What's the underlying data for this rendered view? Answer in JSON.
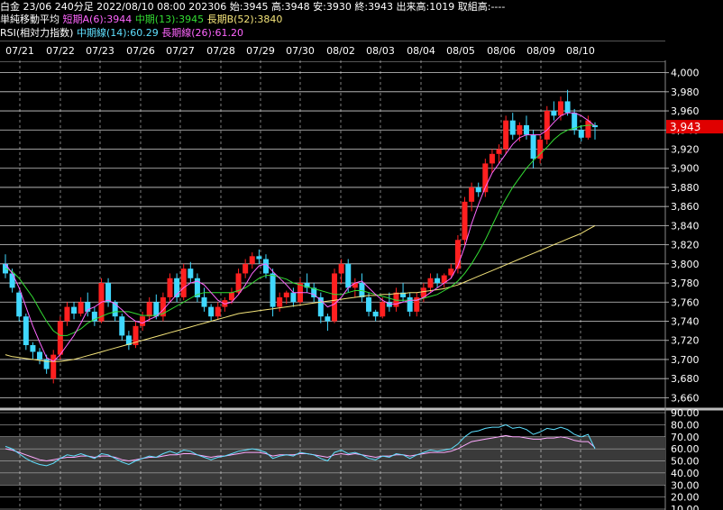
{
  "header": {
    "line1": "白金 23/06 240分足 2022/08/10 08:00 202306 始:3945 高:3948 安:3930 終:3943 出来高:1019 取組高:----",
    "ma_title": "単純移動平均",
    "ma_short": "短期A(6):3944",
    "ma_mid": "中期(13):3945",
    "ma_long": "長期B(52):3840",
    "rsi_title": "RSI(相対力指数)",
    "rsi_mid": "中期線(14):60.29",
    "rsi_long": "長期線(26):61.20"
  },
  "dates": [
    "07/21",
    "07/22",
    "07/23",
    "07/26",
    "07/27",
    "07/28",
    "07/29",
    "07/30",
    "08/02",
    "08/03",
    "08/04",
    "08/05",
    "08/06",
    "08/09",
    "08/10"
  ],
  "price_axis": [
    "4,000",
    "3,980",
    "3,960",
    "3,940",
    "3,920",
    "3,900",
    "3,880",
    "3,860",
    "3,840",
    "3,820",
    "3,800",
    "3,780",
    "3,760",
    "3,740",
    "3,720",
    "3,700",
    "3,680",
    "3,660"
  ],
  "last_price": "3,943",
  "rsi_axis": [
    "90.00",
    "80.00",
    "70.00",
    "60.00",
    "50.00",
    "40.00",
    "30.00",
    "20.00",
    "10.00"
  ],
  "colors": {
    "up": "#ff2020",
    "down": "#40d8ff",
    "ma_short": "#ff66ff",
    "ma_mid": "#33dd33",
    "ma_long": "#f4e47a",
    "rsi_mid": "#5fe0ff",
    "rsi_long": "#ffaaff"
  },
  "chart_data": {
    "type": "candlestick",
    "title": "白金 23/06 240分足",
    "price_ylim": [
      3650,
      4010
    ],
    "rsi_ylim": [
      10,
      90
    ],
    "candles": [
      [
        3800,
        3810,
        3785,
        3790
      ],
      [
        3790,
        3795,
        3770,
        3775
      ],
      [
        3770,
        3772,
        3740,
        3745
      ],
      [
        3745,
        3748,
        3710,
        3715
      ],
      [
        3715,
        3718,
        3700,
        3708
      ],
      [
        3708,
        3712,
        3695,
        3700
      ],
      [
        3700,
        3705,
        3685,
        3690
      ],
      [
        3680,
        3710,
        3675,
        3705
      ],
      [
        3705,
        3745,
        3700,
        3740
      ],
      [
        3740,
        3760,
        3735,
        3755
      ],
      [
        3755,
        3760,
        3742,
        3748
      ],
      [
        3748,
        3765,
        3745,
        3760
      ],
      [
        3760,
        3770,
        3745,
        3750
      ],
      [
        3750,
        3755,
        3735,
        3740
      ],
      [
        3740,
        3785,
        3738,
        3780
      ],
      [
        3780,
        3785,
        3755,
        3760
      ],
      [
        3760,
        3762,
        3740,
        3745
      ],
      [
        3745,
        3748,
        3720,
        3725
      ],
      [
        3725,
        3730,
        3710,
        3715
      ],
      [
        3715,
        3740,
        3712,
        3735
      ],
      [
        3735,
        3750,
        3730,
        3745
      ],
      [
        3745,
        3765,
        3740,
        3760
      ],
      [
        3760,
        3768,
        3742,
        3745
      ],
      [
        3745,
        3770,
        3740,
        3765
      ],
      [
        3765,
        3790,
        3760,
        3785
      ],
      [
        3785,
        3790,
        3760,
        3765
      ],
      [
        3765,
        3800,
        3762,
        3795
      ],
      [
        3795,
        3802,
        3780,
        3785
      ],
      [
        3785,
        3790,
        3760,
        3765
      ],
      [
        3765,
        3775,
        3750,
        3755
      ],
      [
        3755,
        3758,
        3740,
        3745
      ],
      [
        3745,
        3760,
        3742,
        3755
      ],
      [
        3755,
        3765,
        3750,
        3762
      ],
      [
        3762,
        3775,
        3758,
        3770
      ],
      [
        3770,
        3795,
        3768,
        3790
      ],
      [
        3790,
        3805,
        3785,
        3800
      ],
      [
        3800,
        3812,
        3795,
        3808
      ],
      [
        3808,
        3815,
        3800,
        3805
      ],
      [
        3805,
        3810,
        3785,
        3790
      ],
      [
        3790,
        3795,
        3745,
        3755
      ],
      [
        3755,
        3770,
        3750,
        3765
      ],
      [
        3765,
        3772,
        3758,
        3770
      ],
      [
        3770,
        3775,
        3755,
        3760
      ],
      [
        3760,
        3785,
        3758,
        3780
      ],
      [
        3780,
        3790,
        3770,
        3775
      ],
      [
        3775,
        3780,
        3760,
        3765
      ],
      [
        3765,
        3770,
        3738,
        3745
      ],
      [
        3745,
        3748,
        3730,
        3740
      ],
      [
        3740,
        3795,
        3738,
        3790
      ],
      [
        3790,
        3805,
        3780,
        3800
      ],
      [
        3800,
        3805,
        3770,
        3775
      ],
      [
        3775,
        3785,
        3765,
        3780
      ],
      [
        3780,
        3790,
        3760,
        3765
      ],
      [
        3765,
        3770,
        3745,
        3750
      ],
      [
        3750,
        3752,
        3740,
        3745
      ],
      [
        3745,
        3765,
        3743,
        3760
      ],
      [
        3760,
        3770,
        3750,
        3755
      ],
      [
        3755,
        3775,
        3750,
        3770
      ],
      [
        3770,
        3780,
        3760,
        3765
      ],
      [
        3765,
        3770,
        3745,
        3750
      ],
      [
        3750,
        3770,
        3745,
        3765
      ],
      [
        3765,
        3780,
        3760,
        3775
      ],
      [
        3775,
        3790,
        3770,
        3785
      ],
      [
        3785,
        3790,
        3775,
        3780
      ],
      [
        3780,
        3790,
        3775,
        3788
      ],
      [
        3788,
        3800,
        3785,
        3795
      ],
      [
        3795,
        3830,
        3790,
        3825
      ],
      [
        3825,
        3870,
        3820,
        3865
      ],
      [
        3865,
        3885,
        3855,
        3880
      ],
      [
        3880,
        3885,
        3870,
        3875
      ],
      [
        3875,
        3910,
        3870,
        3905
      ],
      [
        3905,
        3920,
        3895,
        3915
      ],
      [
        3915,
        3925,
        3905,
        3920
      ],
      [
        3920,
        3955,
        3915,
        3950
      ],
      [
        3950,
        3958,
        3930,
        3935
      ],
      [
        3935,
        3948,
        3928,
        3945
      ],
      [
        3945,
        3955,
        3930,
        3935
      ],
      [
        3935,
        3940,
        3900,
        3910
      ],
      [
        3910,
        3935,
        3905,
        3930
      ],
      [
        3930,
        3965,
        3925,
        3960
      ],
      [
        3960,
        3970,
        3950,
        3955
      ],
      [
        3955,
        3975,
        3950,
        3970
      ],
      [
        3970,
        3982,
        3955,
        3958
      ],
      [
        3958,
        3962,
        3935,
        3940
      ],
      [
        3940,
        3945,
        3928,
        3932
      ],
      [
        3932,
        3955,
        3930,
        3950
      ],
      [
        3945,
        3948,
        3930,
        3943
      ]
    ],
    "ma_short": [
      3800,
      3790,
      3775,
      3755,
      3735,
      3718,
      3702,
      3698,
      3705,
      3715,
      3725,
      3738,
      3752,
      3755,
      3760,
      3762,
      3758,
      3752,
      3745,
      3740,
      3738,
      3742,
      3745,
      3752,
      3760,
      3768,
      3775,
      3780,
      3782,
      3778,
      3770,
      3762,
      3758,
      3760,
      3768,
      3778,
      3790,
      3798,
      3800,
      3792,
      3785,
      3778,
      3770,
      3770,
      3770,
      3768,
      3762,
      3755,
      3758,
      3765,
      3775,
      3780,
      3782,
      3775,
      3768,
      3762,
      3758,
      3758,
      3760,
      3762,
      3762,
      3765,
      3770,
      3775,
      3780,
      3785,
      3798,
      3818,
      3842,
      3862,
      3880,
      3895,
      3905,
      3915,
      3925,
      3932,
      3935,
      3935,
      3935,
      3940,
      3948,
      3955,
      3958,
      3958,
      3955,
      3950,
      3944
    ],
    "ma_mid": [
      3795,
      3792,
      3785,
      3775,
      3765,
      3752,
      3740,
      3730,
      3725,
      3725,
      3728,
      3732,
      3738,
      3742,
      3745,
      3748,
      3750,
      3750,
      3750,
      3748,
      3746,
      3746,
      3746,
      3748,
      3752,
      3756,
      3760,
      3764,
      3768,
      3770,
      3770,
      3770,
      3770,
      3770,
      3772,
      3775,
      3780,
      3785,
      3788,
      3788,
      3786,
      3784,
      3780,
      3778,
      3776,
      3774,
      3772,
      3770,
      3768,
      3768,
      3770,
      3772,
      3772,
      3770,
      3768,
      3766,
      3764,
      3762,
      3762,
      3762,
      3762,
      3764,
      3766,
      3768,
      3772,
      3776,
      3782,
      3790,
      3800,
      3812,
      3825,
      3840,
      3855,
      3868,
      3880,
      3890,
      3900,
      3908,
      3915,
      3922,
      3930,
      3936,
      3940,
      3942,
      3944,
      3945,
      3945
    ],
    "ma_long": [
      3705,
      3703,
      3702,
      3701,
      3700,
      3699,
      3698,
      3698,
      3698,
      3699,
      3700,
      3702,
      3704,
      3706,
      3708,
      3710,
      3712,
      3714,
      3716,
      3718,
      3720,
      3722,
      3724,
      3726,
      3728,
      3730,
      3732,
      3734,
      3736,
      3738,
      3740,
      3742,
      3744,
      3746,
      3748,
      3749,
      3750,
      3751,
      3752,
      3753,
      3754,
      3755,
      3756,
      3757,
      3758,
      3759,
      3760,
      3761,
      3762,
      3763,
      3764,
      3765,
      3766,
      3767,
      3767,
      3768,
      3768,
      3769,
      3769,
      3770,
      3770,
      3771,
      3772,
      3773,
      3774,
      3776,
      3778,
      3781,
      3784,
      3787,
      3790,
      3793,
      3796,
      3799,
      3802,
      3805,
      3808,
      3811,
      3814,
      3817,
      3820,
      3823,
      3826,
      3829,
      3832,
      3836,
      3840
    ],
    "rsi_mid": [
      62,
      60,
      56,
      52,
      49,
      47,
      46,
      48,
      52,
      55,
      54,
      56,
      54,
      52,
      56,
      55,
      52,
      49,
      47,
      50,
      52,
      54,
      53,
      56,
      58,
      56,
      59,
      58,
      55,
      53,
      51,
      53,
      54,
      56,
      58,
      59,
      60,
      59,
      57,
      52,
      54,
      55,
      54,
      57,
      56,
      55,
      52,
      50,
      57,
      59,
      56,
      57,
      55,
      52,
      51,
      54,
      53,
      56,
      55,
      52,
      55,
      57,
      59,
      58,
      59,
      60,
      64,
      70,
      74,
      75,
      77,
      78,
      78,
      80,
      77,
      78,
      76,
      72,
      74,
      77,
      76,
      78,
      76,
      72,
      70,
      72,
      60
    ],
    "rsi_long": [
      60,
      59,
      57,
      55,
      53,
      51,
      50,
      51,
      52,
      53,
      53,
      54,
      54,
      53,
      54,
      54,
      53,
      51,
      50,
      51,
      52,
      53,
      53,
      54,
      55,
      55,
      56,
      56,
      55,
      54,
      53,
      54,
      54,
      55,
      56,
      57,
      57,
      57,
      56,
      54,
      55,
      55,
      55,
      56,
      56,
      55,
      54,
      53,
      55,
      56,
      55,
      56,
      55,
      54,
      53,
      54,
      54,
      55,
      55,
      54,
      55,
      56,
      57,
      57,
      57,
      58,
      60,
      63,
      66,
      67,
      68,
      69,
      70,
      71,
      70,
      70,
      69,
      68,
      68,
      69,
      69,
      70,
      69,
      67,
      66,
      66,
      61
    ]
  }
}
